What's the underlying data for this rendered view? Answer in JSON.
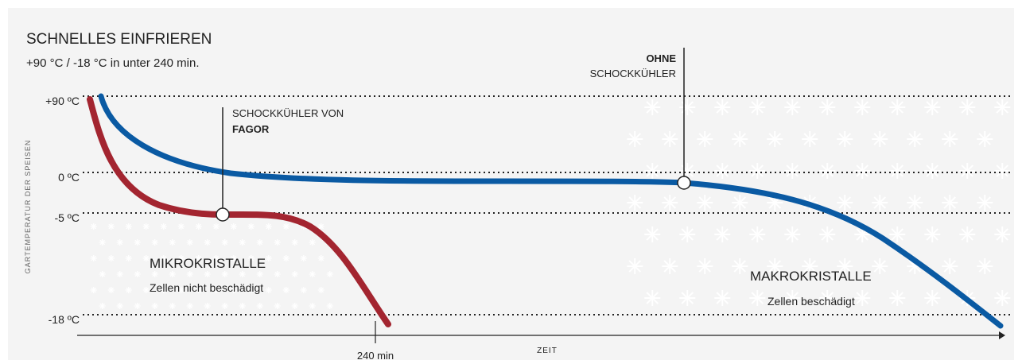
{
  "header": {
    "title": "SCHNELLES EINFRIEREN",
    "subtitle": "+90 °C / -18 °C in unter 240 min."
  },
  "axes": {
    "y_label": "GARTEMPERATUR DER SPEISEN",
    "y_levels": [
      "+90 ºC",
      "0 ºC",
      "-5 ºC",
      "-18 ºC"
    ],
    "x_label": "ZEIT",
    "x_marker": "240 min"
  },
  "annotations": {
    "fagor": {
      "line1": "SCHOCKKÜHLER VON",
      "line2": "FAGOR"
    },
    "ohne": {
      "line1": "OHNE",
      "line2": "SCHOCKKÜHLER"
    }
  },
  "regions": {
    "micro": {
      "title": "MIKROKRISTALLE",
      "text": "Zellen nicht beschädigt"
    },
    "macro": {
      "title": "MAKROKRISTALLE",
      "text": "Zellen beschädigt"
    }
  }
}
